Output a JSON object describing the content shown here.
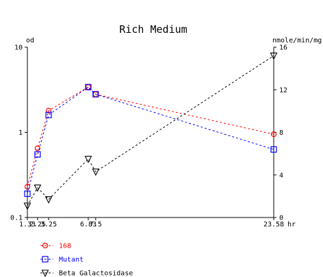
{
  "chart_data": {
    "type": "line",
    "title": "Rich Medium",
    "left_axis": {
      "unit_label": "od",
      "scale": "log",
      "range": [
        0.1,
        10
      ],
      "ticks": [
        {
          "value": 0.1,
          "label": "0.1"
        },
        {
          "value": 1,
          "label": "1"
        },
        {
          "value": 10,
          "label": "10"
        }
      ]
    },
    "right_axis": {
      "unit_label": "nmole/min/mg",
      "scale": "linear",
      "range": [
        0,
        16
      ],
      "ticks": [
        {
          "value": 0,
          "label": "0"
        },
        {
          "value": 4,
          "label": "4"
        },
        {
          "value": 8,
          "label": "8"
        },
        {
          "value": 12,
          "label": "12"
        },
        {
          "value": 16,
          "label": "16"
        }
      ]
    },
    "x_axis": {
      "unit_label": "hr",
      "range": [
        1.33,
        23.58
      ],
      "tick_labels": [
        "1.33",
        "2.25",
        "3.25",
        "6.83",
        "7.5",
        "23.58"
      ]
    },
    "grid": false,
    "legend_placement": "bottom-left",
    "series": [
      {
        "name": "168",
        "axis": "left",
        "color": "#ff0000",
        "marker": "circle",
        "points": [
          {
            "x": 1.33,
            "y": 0.23
          },
          {
            "x": 2.25,
            "y": 0.65
          },
          {
            "x": 3.25,
            "y": 1.8
          },
          {
            "x": 6.83,
            "y": 3.4
          },
          {
            "x": 7.5,
            "y": 2.8
          },
          {
            "x": 23.58,
            "y": 0.95
          }
        ]
      },
      {
        "name": "Mutant",
        "axis": "left",
        "color": "#0000ff",
        "marker": "square",
        "points": [
          {
            "x": 1.33,
            "y": 0.19
          },
          {
            "x": 2.25,
            "y": 0.55
          },
          {
            "x": 3.25,
            "y": 1.6
          },
          {
            "x": 6.83,
            "y": 3.4
          },
          {
            "x": 7.5,
            "y": 2.8
          },
          {
            "x": 23.58,
            "y": 0.63
          }
        ]
      },
      {
        "name": "Beta Galactosidase",
        "axis": "right",
        "color": "#000000",
        "marker": "triangle-down",
        "points": [
          {
            "x": 1.33,
            "y": 1.1
          },
          {
            "x": 2.25,
            "y": 2.8
          },
          {
            "x": 3.25,
            "y": 1.7
          },
          {
            "x": 6.83,
            "y": 5.5
          },
          {
            "x": 7.5,
            "y": 4.3
          },
          {
            "x": 23.58,
            "y": 15.2
          }
        ]
      }
    ]
  }
}
